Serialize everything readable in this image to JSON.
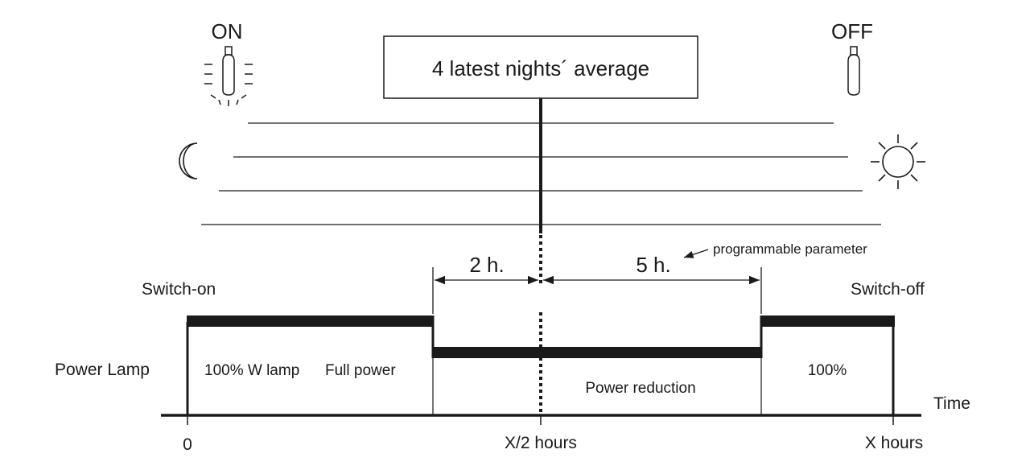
{
  "title_box": "4 latest nights´ average",
  "lamp_on": {
    "label": "ON",
    "icon": "lit-bulb-icon"
  },
  "lamp_off": {
    "label": "OFF",
    "icon": "unlit-bulb-icon"
  },
  "night_icon": "crescent-moon-icon",
  "day_icon": "sun-icon",
  "events": {
    "switch_on": "Switch-on",
    "switch_off": "Switch-off"
  },
  "row_label": "Power Lamp",
  "segments": {
    "first_pct": "100% W lamp",
    "first_desc": "Full power",
    "middle_desc": "Power reduction",
    "last_pct": "100%"
  },
  "intervals": {
    "before_mid": "2 h.",
    "after_mid": "5 h."
  },
  "annotation": "programmable parameter",
  "time_axis": {
    "label": "Time",
    "start": "0",
    "mid": "X/2 hours",
    "end": "X hours"
  },
  "colors": {
    "ink": "#1a1a1a",
    "background": "#ffffff"
  }
}
